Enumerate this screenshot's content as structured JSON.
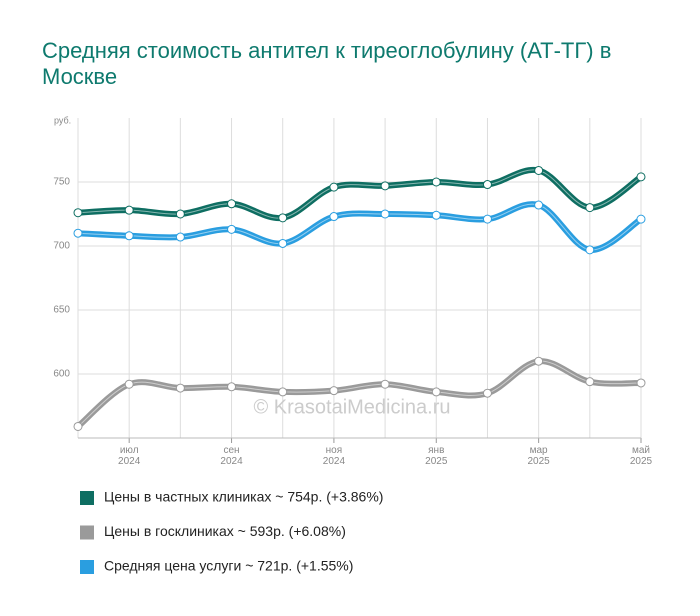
{
  "chart_data": {
    "type": "line",
    "title": "Средняя стоимость антител к тиреоглобулину (АТ-ТГ) в Москве",
    "y_unit": "руб.",
    "watermark": "© KrasotaiMedicina.ru",
    "categories": [
      null,
      "июл 2024",
      null,
      "сен 2024",
      null,
      "ноя 2024",
      null,
      "янв 2025",
      null,
      "мар 2025",
      null,
      "май 2025"
    ],
    "series": [
      {
        "name": "Цены в частных клиниках ~ 754р. (+3.86%)",
        "color": "#0e6e62",
        "values": [
          726,
          728,
          725,
          733,
          722,
          746,
          747,
          750,
          748,
          759,
          730,
          754
        ]
      },
      {
        "name": "Цены в госклиниках ~ 593р. (+6.08%)",
        "color": "#9a9a9a",
        "values": [
          559,
          592,
          589,
          590,
          586,
          587,
          592,
          586,
          585,
          610,
          594,
          593
        ]
      },
      {
        "name": "Средняя цена услуги ~ 721р. (+1.55%)",
        "color": "#2a9ee0",
        "values": [
          710,
          708,
          707,
          713,
          702,
          723,
          725,
          724,
          721,
          732,
          697,
          721
        ]
      }
    ],
    "ylim": [
      550,
      800
    ],
    "yticks": [
      600,
      650,
      700,
      750
    ],
    "grid": true
  }
}
